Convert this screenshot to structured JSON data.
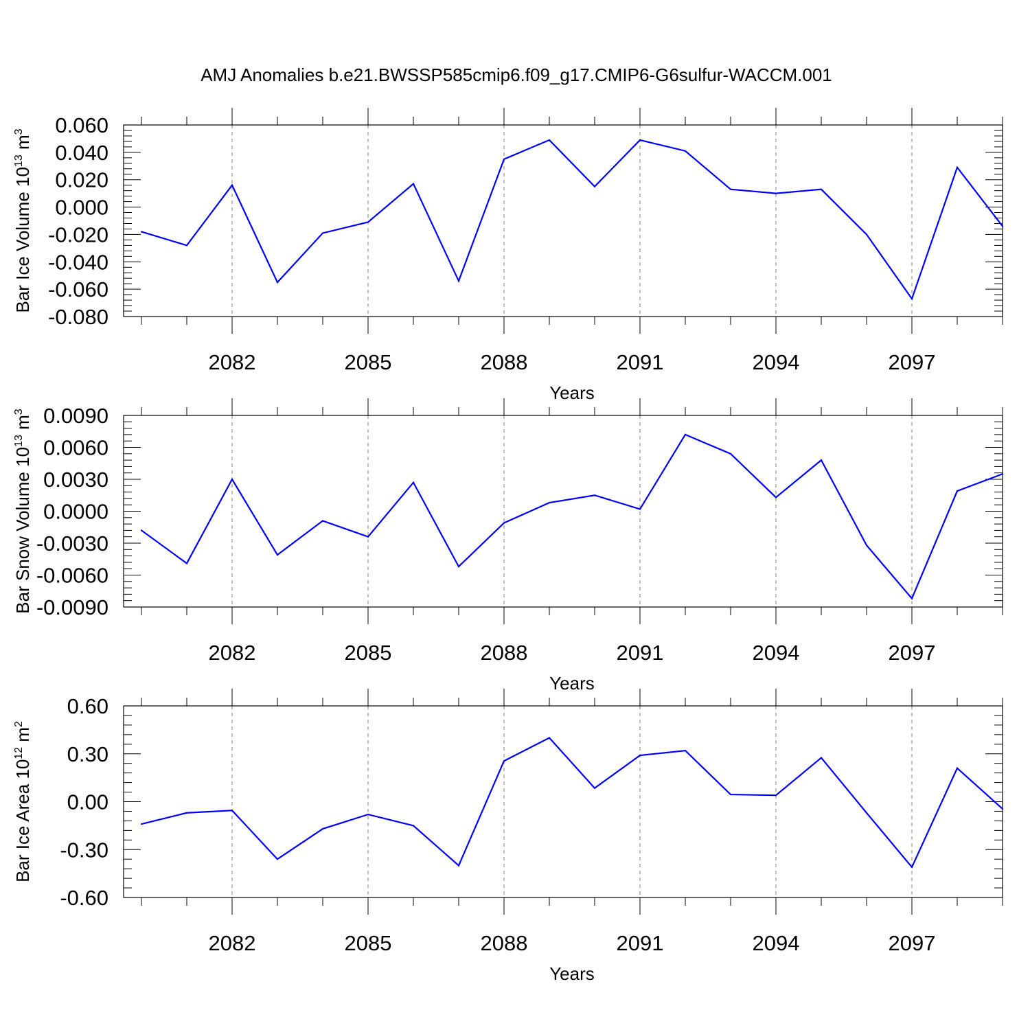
{
  "title": "AMJ Anomalies b.e21.BWSSP585cmip6.f09_g17.CMIP6-G6sulfur-WACCM.001",
  "colors": {
    "line": "#0000ff",
    "axes": "#000000",
    "grid": "#7f7f7f",
    "background": "#ffffff"
  },
  "chart_data": [
    {
      "type": "line",
      "ylabel": {
        "main": "Bar Ice Volume 10",
        "sup": "13",
        "tail": " m",
        "unit_sup": "3"
      },
      "xlabel": "Years",
      "xlim": [
        2080,
        2099
      ],
      "ylim": [
        -0.08,
        0.06
      ],
      "yticks": [
        "-0.080",
        "-0.060",
        "-0.040",
        "-0.020",
        "0.000",
        "0.020",
        "0.040",
        "0.060"
      ],
      "ytick_values": [
        -0.08,
        -0.06,
        -0.04,
        -0.02,
        0.0,
        0.02,
        0.04,
        0.06
      ],
      "xticks": [
        "2082",
        "2085",
        "2088",
        "2091",
        "2094",
        "2097"
      ],
      "xtick_values": [
        2082,
        2085,
        2088,
        2091,
        2094,
        2097
      ],
      "grid": "vertical dashed at labeled years",
      "x": [
        2080,
        2081,
        2082,
        2083,
        2084,
        2085,
        2086,
        2087,
        2088,
        2089,
        2090,
        2091,
        2092,
        2093,
        2094,
        2095,
        2096,
        2097,
        2098,
        2099
      ],
      "y": [
        -0.018,
        -0.028,
        0.016,
        -0.055,
        -0.019,
        -0.011,
        0.017,
        -0.054,
        0.035,
        0.049,
        0.015,
        0.049,
        0.041,
        0.013,
        0.01,
        0.013,
        -0.02,
        -0.067,
        0.029,
        -0.014
      ]
    },
    {
      "type": "line",
      "ylabel": {
        "main": "Bar Snow Volume 10",
        "sup": "13",
        "tail": " m",
        "unit_sup": "3"
      },
      "xlabel": "Years",
      "xlim": [
        2080,
        2099
      ],
      "ylim": [
        -0.009,
        0.009
      ],
      "yticks": [
        "-0.0090",
        "-0.0060",
        "-0.0030",
        "0.0000",
        "0.0030",
        "0.0060",
        "0.0090"
      ],
      "ytick_values": [
        -0.009,
        -0.006,
        -0.003,
        0.0,
        0.003,
        0.006,
        0.009
      ],
      "xticks": [
        "2082",
        "2085",
        "2088",
        "2091",
        "2094",
        "2097"
      ],
      "xtick_values": [
        2082,
        2085,
        2088,
        2091,
        2094,
        2097
      ],
      "grid": "vertical dashed at labeled years",
      "x": [
        2080,
        2081,
        2082,
        2083,
        2084,
        2085,
        2086,
        2087,
        2088,
        2089,
        2090,
        2091,
        2092,
        2093,
        2094,
        2095,
        2096,
        2097,
        2098,
        2099
      ],
      "y": [
        -0.0018,
        -0.0049,
        0.003,
        -0.0041,
        -0.0009,
        -0.0024,
        0.0027,
        -0.0052,
        -0.0011,
        0.0008,
        0.0015,
        0.0002,
        0.0072,
        0.0054,
        0.0013,
        0.0048,
        -0.0032,
        -0.0082,
        0.0019,
        0.0035
      ]
    },
    {
      "type": "line",
      "ylabel": {
        "main": "Bar Ice Area 10",
        "sup": "12",
        "tail": " m",
        "unit_sup": "2"
      },
      "xlabel": "Years",
      "xlim": [
        2080,
        2099
      ],
      "ylim": [
        -0.6,
        0.6
      ],
      "yticks": [
        "-0.60",
        "-0.30",
        "0.00",
        "0.30",
        "0.60"
      ],
      "ytick_values": [
        -0.6,
        -0.3,
        0.0,
        0.3,
        0.6
      ],
      "xticks": [
        "2082",
        "2085",
        "2088",
        "2091",
        "2094",
        "2097"
      ],
      "xtick_values": [
        2082,
        2085,
        2088,
        2091,
        2094,
        2097
      ],
      "grid": "vertical dashed at labeled years",
      "x": [
        2080,
        2081,
        2082,
        2083,
        2084,
        2085,
        2086,
        2087,
        2088,
        2089,
        2090,
        2091,
        2092,
        2093,
        2094,
        2095,
        2096,
        2097,
        2098,
        2099
      ],
      "y": [
        -0.14,
        -0.07,
        -0.055,
        -0.36,
        -0.17,
        -0.08,
        -0.15,
        -0.4,
        0.255,
        0.4,
        0.085,
        0.29,
        0.32,
        0.045,
        0.04,
        0.275,
        -0.07,
        -0.41,
        0.21,
        -0.045
      ]
    }
  ]
}
